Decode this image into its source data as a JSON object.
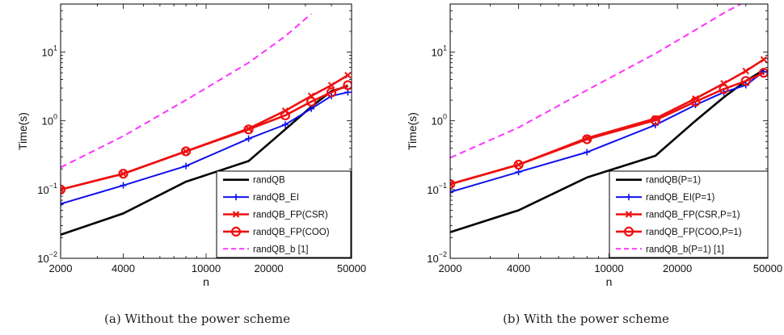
{
  "chart_data": [
    {
      "type": "line",
      "caption": "(a) Without the power scheme",
      "xlabel": "n",
      "ylabel": "Time(s)",
      "xscale": "log",
      "yscale": "log",
      "xlim": [
        2000,
        50000
      ],
      "ylim": [
        0.01,
        50
      ],
      "xticks": [
        2000,
        4000,
        10000,
        20000,
        50000
      ],
      "xtick_labels": [
        "2000",
        "4000",
        "10000",
        "20000",
        "50000"
      ],
      "yticks": [
        0.01,
        0.1,
        1,
        10
      ],
      "ytick_labels": [
        {
          "base": "10",
          "exp": "−2"
        },
        {
          "base": "10",
          "exp": "−1"
        },
        {
          "base": "10",
          "exp": "0"
        },
        {
          "base": "10",
          "exp": "1"
        }
      ],
      "legend_position": "bottom-right",
      "series": [
        {
          "name": "randQB",
          "color": "#000000",
          "dash": "solid",
          "marker": "none",
          "x": [
            2000,
            4000,
            8000,
            16000,
            24000,
            32000,
            40000,
            48000
          ],
          "y": [
            0.022,
            0.045,
            0.13,
            0.26,
            0.75,
            1.6,
            2.7,
            3.2
          ]
        },
        {
          "name": "randQB_EI",
          "color": "#1010ee",
          "dash": "solid",
          "marker": "plus",
          "x": [
            2000,
            4000,
            8000,
            16000,
            24000,
            32000,
            40000,
            48000
          ],
          "y": [
            0.062,
            0.115,
            0.22,
            0.55,
            0.88,
            1.5,
            2.3,
            2.6
          ]
        },
        {
          "name": "randQB_FP(CSR)",
          "color": "#ee1010",
          "dash": "solid",
          "marker": "x",
          "x": [
            2000,
            4000,
            8000,
            16000,
            24000,
            32000,
            40000,
            48000
          ],
          "y": [
            0.1,
            0.17,
            0.36,
            0.77,
            1.4,
            2.3,
            3.3,
            4.6
          ]
        },
        {
          "name": "randQB_FP(COO)",
          "color": "#ee1010",
          "dash": "solid",
          "marker": "circle",
          "x": [
            2000,
            4000,
            8000,
            16000,
            24000,
            32000,
            40000,
            48000
          ],
          "y": [
            0.1,
            0.17,
            0.36,
            0.75,
            1.2,
            1.9,
            2.6,
            3.3
          ]
        },
        {
          "name": "randQB_b [1]",
          "color": "#ff33ff",
          "dash": "dashed",
          "marker": "none",
          "x": [
            2000,
            4000,
            8000,
            16000,
            24000,
            32000
          ],
          "y": [
            0.21,
            0.6,
            2.0,
            7.0,
            17,
            36
          ]
        }
      ]
    },
    {
      "type": "line",
      "caption": "(b) With the power scheme",
      "xlabel": "n",
      "ylabel": "Time(s)",
      "xscale": "log",
      "yscale": "log",
      "xlim": [
        2000,
        50000
      ],
      "ylim": [
        0.01,
        50
      ],
      "xticks": [
        2000,
        4000,
        10000,
        20000,
        50000
      ],
      "xtick_labels": [
        "2000",
        "4000",
        "10000",
        "20000",
        "50000"
      ],
      "yticks": [
        0.01,
        0.1,
        1,
        10
      ],
      "ytick_labels": [
        {
          "base": "10",
          "exp": "−2"
        },
        {
          "base": "10",
          "exp": "−1"
        },
        {
          "base": "10",
          "exp": "0"
        },
        {
          "base": "10",
          "exp": "1"
        }
      ],
      "legend_position": "bottom-right",
      "series": [
        {
          "name": "randQB(P=1)",
          "color": "#000000",
          "dash": "solid",
          "marker": "none",
          "x": [
            2000,
            4000,
            8000,
            16000,
            24000,
            32000,
            40000,
            48000
          ],
          "y": [
            0.024,
            0.05,
            0.15,
            0.31,
            1.0,
            2.2,
            3.8,
            5.5
          ]
        },
        {
          "name": "randQB_EI(P=1)",
          "color": "#1010ee",
          "dash": "solid",
          "marker": "plus",
          "x": [
            2000,
            4000,
            8000,
            16000,
            24000,
            32000,
            40000,
            48000
          ],
          "y": [
            0.092,
            0.18,
            0.35,
            0.87,
            1.7,
            2.6,
            3.3,
            5.2
          ]
        },
        {
          "name": "randQB_FP(CSR,P=1)",
          "color": "#ee1010",
          "dash": "solid",
          "marker": "x",
          "x": [
            2000,
            4000,
            8000,
            16000,
            24000,
            32000,
            40000,
            48000
          ],
          "y": [
            0.12,
            0.23,
            0.56,
            1.08,
            2.1,
            3.5,
            5.3,
            7.8
          ]
        },
        {
          "name": "randQB_FP(COO,P=1)",
          "color": "#ee1010",
          "dash": "solid",
          "marker": "circle",
          "x": [
            2000,
            4000,
            8000,
            16000,
            24000,
            32000,
            40000,
            48000
          ],
          "y": [
            0.12,
            0.23,
            0.54,
            1.02,
            1.9,
            2.9,
            3.8,
            5.0
          ]
        },
        {
          "name": "randQB_b(P=1) [1]",
          "color": "#ff33ff",
          "dash": "dashed",
          "marker": "none",
          "x": [
            2000,
            4000,
            8000,
            16000,
            24000,
            32000,
            40000
          ],
          "y": [
            0.29,
            0.8,
            2.8,
            9.5,
            21,
            37,
            55
          ]
        }
      ]
    }
  ]
}
